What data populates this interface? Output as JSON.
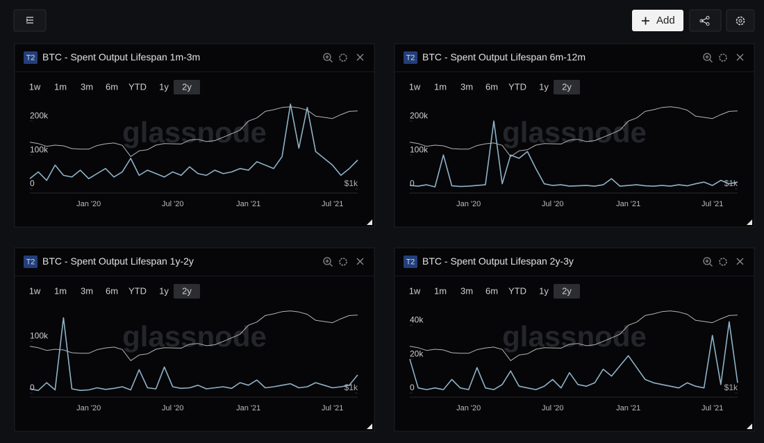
{
  "toolbar": {
    "add": "Add"
  },
  "panels": [
    {
      "badge": "T2",
      "ranges": [
        "1w",
        "1m",
        "3m",
        "6m",
        "YTD",
        "1y",
        "2y"
      ],
      "active_range": 6
    },
    {
      "badge": "T2",
      "ranges": [
        "1w",
        "1m",
        "3m",
        "6m",
        "YTD",
        "1y",
        "2y"
      ],
      "active_range": 6
    },
    {
      "badge": "T2",
      "ranges": [
        "1w",
        "1m",
        "3m",
        "6m",
        "YTD",
        "1y",
        "2y"
      ],
      "active_range": 6
    },
    {
      "badge": "T2",
      "ranges": [
        "1w",
        "1m",
        "3m",
        "6m",
        "YTD",
        "1y",
        "2y"
      ],
      "active_range": 6
    }
  ],
  "chart_data": [
    {
      "type": "line",
      "title": "BTC - Spent Output Lifespan 1m-3m",
      "watermark": "glassnode",
      "categories": [
        null,
        null,
        null,
        null,
        null,
        null,
        null,
        "Jan '20",
        null,
        null,
        null,
        null,
        null,
        null,
        null,
        null,
        null,
        "Jul '20",
        null,
        null,
        null,
        null,
        null,
        null,
        null,
        null,
        "Jan '21",
        null,
        null,
        null,
        null,
        null,
        null,
        null,
        null,
        null,
        "Jul '21",
        null,
        null,
        null
      ],
      "ylim": [
        0,
        260000
      ],
      "yticks": [
        0,
        {
          "value": 100000,
          "label": "100k"
        },
        {
          "value": 200000,
          "label": "200k"
        }
      ],
      "y2lim": [
        1000,
        80000
      ],
      "y2scale": "log",
      "y2ticks": [
        {
          "value": 1000,
          "label": "$1k"
        }
      ],
      "series": [
        {
          "color": "#8fb3c9",
          "values": [
            30000,
            50000,
            25000,
            70000,
            40000,
            35000,
            55000,
            30000,
            45000,
            60000,
            35000,
            50000,
            90000,
            40000,
            55000,
            45000,
            35000,
            50000,
            40000,
            65000,
            45000,
            40000,
            55000,
            45000,
            50000,
            60000,
            55000,
            80000,
            70000,
            60000,
            95000,
            250000,
            120000,
            240000,
            110000,
            90000,
            70000,
            40000,
            60000,
            85000
          ]
        },
        {
          "color": "#b5b5b5",
          "axis": "y2",
          "values": [
            10200,
            9500,
            8300,
            8800,
            8500,
            7400,
            7200,
            7200,
            8600,
            9400,
            9800,
            8700,
            5000,
            6600,
            7000,
            8800,
            9500,
            9400,
            9300,
            11300,
            11700,
            10500,
            11000,
            13000,
            15500,
            18500,
            29000,
            34000,
            47000,
            51000,
            57000,
            59000,
            56000,
            50000,
            37000,
            35000,
            33000,
            40000,
            47000,
            48000
          ]
        }
      ]
    },
    {
      "type": "line",
      "title": "BTC - Spent Output Lifespan 6m-12m",
      "watermark": "glassnode",
      "categories": [
        null,
        null,
        null,
        null,
        null,
        null,
        null,
        "Jan '20",
        null,
        null,
        null,
        null,
        null,
        null,
        null,
        null,
        null,
        "Jul '20",
        null,
        null,
        null,
        null,
        null,
        null,
        null,
        null,
        "Jan '21",
        null,
        null,
        null,
        null,
        null,
        null,
        null,
        null,
        null,
        "Jul '21",
        null,
        null,
        null
      ],
      "ylim": [
        0,
        260000
      ],
      "yticks": [
        0,
        {
          "value": 100000,
          "label": "100k"
        },
        {
          "value": 200000,
          "label": "200k"
        }
      ],
      "y2lim": [
        1000,
        80000
      ],
      "y2scale": "log",
      "y2ticks": [
        {
          "value": 1000,
          "label": "$1k"
        }
      ],
      "series": [
        {
          "color": "#8fb3c9",
          "values": [
            10000,
            8000,
            12000,
            6000,
            100000,
            9000,
            7000,
            8000,
            10000,
            12000,
            200000,
            15000,
            100000,
            90000,
            110000,
            60000,
            15000,
            10000,
            12000,
            8000,
            9000,
            10000,
            8000,
            12000,
            30000,
            8000,
            10000,
            12000,
            9000,
            8000,
            10000,
            8000,
            12000,
            9000,
            15000,
            20000,
            10000,
            25000,
            15000,
            20000
          ]
        },
        {
          "color": "#b5b5b5",
          "axis": "y2",
          "values": [
            10200,
            9500,
            8300,
            8800,
            8500,
            7400,
            7200,
            7200,
            8600,
            9400,
            9800,
            8700,
            5000,
            6600,
            7000,
            8800,
            9500,
            9400,
            9300,
            11300,
            11700,
            10500,
            11000,
            13000,
            15500,
            18500,
            29000,
            34000,
            47000,
            51000,
            57000,
            59000,
            56000,
            50000,
            37000,
            35000,
            33000,
            40000,
            47000,
            48000
          ]
        }
      ]
    },
    {
      "type": "line",
      "title": "BTC - Spent Output Lifespan 1y-2y",
      "watermark": "glassnode",
      "categories": [
        null,
        null,
        null,
        null,
        null,
        null,
        null,
        "Jan '20",
        null,
        null,
        null,
        null,
        null,
        null,
        null,
        null,
        null,
        "Jul '20",
        null,
        null,
        null,
        null,
        null,
        null,
        null,
        null,
        "Jan '21",
        null,
        null,
        null,
        null,
        null,
        null,
        null,
        null,
        null,
        "Jul '21",
        null,
        null,
        null
      ],
      "ylim": [
        0,
        170000
      ],
      "yticks": [
        0,
        {
          "value": 100000,
          "label": "100k"
        }
      ],
      "y2lim": [
        1000,
        80000
      ],
      "y2scale": "log",
      "y2ticks": [
        {
          "value": 1000,
          "label": "$1k"
        }
      ],
      "series": [
        {
          "color": "#8fb3c9",
          "values": [
            8000,
            5000,
            20000,
            6000,
            145000,
            8000,
            5000,
            6000,
            10000,
            7000,
            9000,
            12000,
            6000,
            45000,
            10000,
            8000,
            50000,
            12000,
            9000,
            10000,
            15000,
            8000,
            10000,
            12000,
            9000,
            20000,
            15000,
            25000,
            10000,
            12000,
            15000,
            18000,
            10000,
            12000,
            20000,
            15000,
            10000,
            12000,
            15000,
            35000
          ]
        },
        {
          "color": "#b5b5b5",
          "axis": "y2",
          "values": [
            10200,
            9500,
            8300,
            8800,
            8500,
            7400,
            7200,
            7200,
            8600,
            9400,
            9800,
            8700,
            5000,
            6600,
            7000,
            8800,
            9500,
            9400,
            9300,
            11300,
            11700,
            10500,
            11000,
            13000,
            15500,
            18500,
            29000,
            34000,
            47000,
            51000,
            57000,
            59000,
            56000,
            50000,
            37000,
            35000,
            33000,
            40000,
            47000,
            48000
          ]
        }
      ]
    },
    {
      "type": "line",
      "title": "BTC - Spent Output Lifespan 2y-3y",
      "watermark": "glassnode",
      "categories": [
        null,
        null,
        null,
        null,
        null,
        null,
        null,
        "Jan '20",
        null,
        null,
        null,
        null,
        null,
        null,
        null,
        null,
        null,
        "Jul '20",
        null,
        null,
        null,
        null,
        null,
        null,
        null,
        null,
        "Jan '21",
        null,
        null,
        null,
        null,
        null,
        null,
        null,
        null,
        null,
        "Jul '21",
        null,
        null,
        null
      ],
      "ylim": [
        0,
        52000
      ],
      "yticks": [
        0,
        {
          "value": 20000,
          "label": "20k"
        },
        {
          "value": 40000,
          "label": "40k"
        }
      ],
      "y2lim": [
        1000,
        80000
      ],
      "y2scale": "log",
      "y2ticks": [
        {
          "value": 1000,
          "label": "$1k"
        }
      ],
      "series": [
        {
          "color": "#8fb3c9",
          "values": [
            20000,
            3000,
            2000,
            3000,
            2000,
            8000,
            3000,
            2000,
            15000,
            3000,
            2000,
            5000,
            13000,
            4000,
            3000,
            2000,
            4000,
            8000,
            3000,
            12000,
            5000,
            4000,
            6000,
            14000,
            10000,
            16000,
            22000,
            15000,
            8000,
            6000,
            5000,
            4000,
            3000,
            6000,
            4000,
            3000,
            34000,
            5000,
            42000,
            6000
          ]
        },
        {
          "color": "#b5b5b5",
          "axis": "y2",
          "values": [
            10200,
            9500,
            8300,
            8800,
            8500,
            7400,
            7200,
            7200,
            8600,
            9400,
            9800,
            8700,
            5000,
            6600,
            7000,
            8800,
            9500,
            9400,
            9300,
            11300,
            11700,
            10500,
            11000,
            13000,
            15500,
            18500,
            29000,
            34000,
            47000,
            51000,
            57000,
            59000,
            56000,
            50000,
            37000,
            35000,
            33000,
            40000,
            47000,
            48000
          ]
        }
      ]
    }
  ]
}
